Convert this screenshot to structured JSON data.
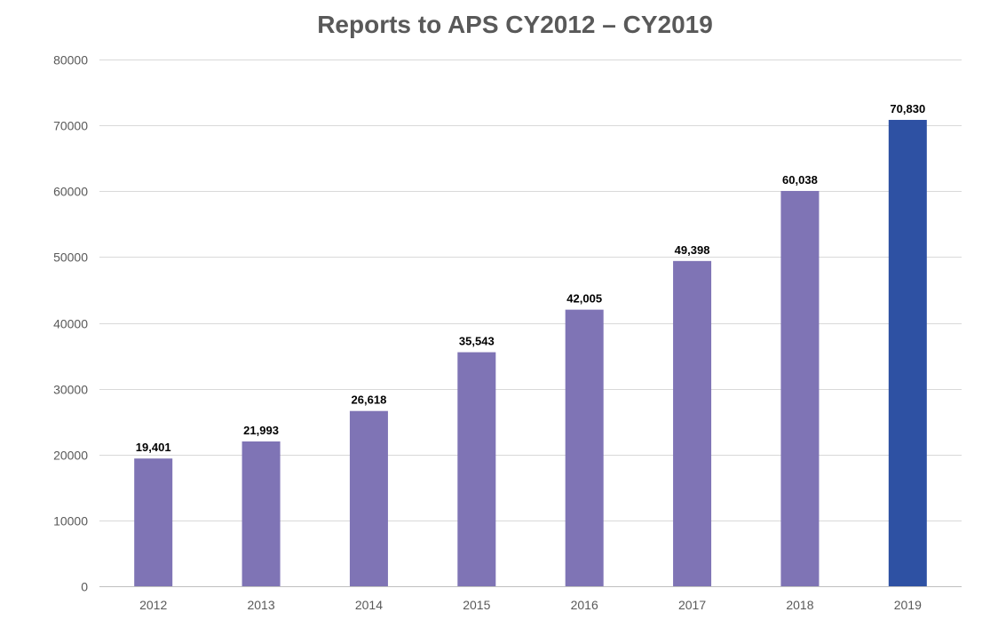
{
  "chart_data": {
    "type": "bar",
    "title": "Reports to APS CY2012 – CY2019",
    "xlabel": "",
    "ylabel": "",
    "categories": [
      "2012",
      "2013",
      "2014",
      "2015",
      "2016",
      "2017",
      "2018",
      "2019"
    ],
    "values": [
      19401,
      21993,
      26618,
      35543,
      42005,
      49398,
      60038,
      70830
    ],
    "data_labels": [
      "19,401",
      "21,993",
      "26,618",
      "35,543",
      "42,005",
      "49,398",
      "60,038",
      "70,830"
    ],
    "ylim": [
      0,
      80000
    ],
    "yticks": [
      0,
      10000,
      20000,
      30000,
      40000,
      50000,
      60000,
      70000,
      80000
    ],
    "ytick_labels": [
      "0",
      "10000",
      "20000",
      "30000",
      "40000",
      "50000",
      "60000",
      "70000",
      "80000"
    ],
    "grid": true,
    "legend": "none",
    "colors": {
      "default_bar": "#7f74b5",
      "highlight_bar": "#2e51a3",
      "grid": "#d9d9d9",
      "text": "#595959"
    },
    "highlight_index": 7
  }
}
